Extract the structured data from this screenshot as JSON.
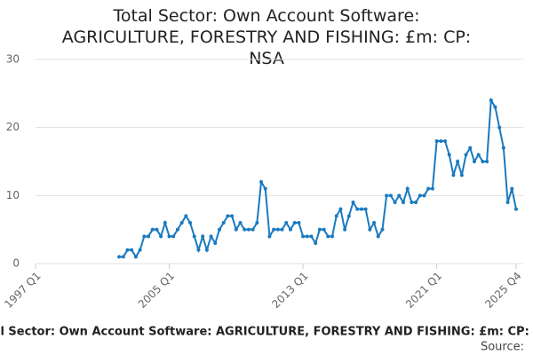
{
  "chart_data": {
    "type": "line",
    "title": "Total Sector: Own Account Software: AGRICULTURE, FORESTRY AND FISHING: £m: CP: NSA",
    "footer_title": "Total Sector: Own Account Software: AGRICULTURE, FORESTRY AND FISHING: £m: CP: NSA",
    "source_label": "Source:",
    "categories": [
      "1997 Q1",
      null,
      null,
      null,
      null,
      null,
      null,
      null,
      null,
      null,
      null,
      null,
      null,
      null,
      null,
      null,
      null,
      null,
      null,
      null,
      null,
      null,
      null,
      null,
      null,
      null,
      null,
      null,
      null,
      null,
      null,
      null,
      "2005 Q1",
      null,
      null,
      null,
      null,
      null,
      null,
      null,
      null,
      null,
      null,
      null,
      null,
      null,
      null,
      null,
      null,
      null,
      null,
      null,
      null,
      null,
      null,
      null,
      null,
      null,
      null,
      null,
      null,
      null,
      null,
      null,
      "2013 Q1",
      null,
      null,
      null,
      null,
      null,
      null,
      null,
      null,
      null,
      null,
      null,
      null,
      null,
      null,
      null,
      null,
      null,
      null,
      null,
      null,
      null,
      null,
      null,
      null,
      null,
      null,
      null,
      null,
      null,
      null,
      null,
      "2021 Q1",
      null,
      null,
      null,
      null,
      null,
      null,
      null,
      null,
      null,
      null,
      null,
      null,
      null,
      null,
      null,
      null,
      null,
      null,
      "2025 Q4"
    ],
    "series": [
      {
        "color": "#1a7abf",
        "values": [
          null,
          null,
          null,
          null,
          null,
          null,
          null,
          null,
          null,
          null,
          null,
          null,
          null,
          null,
          null,
          null,
          null,
          null,
          null,
          null,
          1,
          1,
          2,
          2,
          1,
          2,
          4,
          4,
          5,
          5,
          4,
          6,
          4,
          4,
          5,
          6,
          7,
          6,
          4,
          2,
          4,
          2,
          4,
          3,
          5,
          6,
          7,
          7,
          5,
          6,
          5,
          5,
          5,
          6,
          12,
          11,
          4,
          5,
          5,
          5,
          6,
          5,
          6,
          6,
          4,
          4,
          4,
          3,
          5,
          5,
          4,
          4,
          7,
          8,
          5,
          7,
          9,
          8,
          8,
          8,
          5,
          6,
          4,
          5,
          10,
          10,
          9,
          10,
          9,
          11,
          9,
          9,
          10,
          10,
          11,
          11,
          18,
          18,
          18,
          16,
          13,
          15,
          13,
          16,
          17,
          15,
          16,
          15,
          15,
          24,
          23,
          20,
          17,
          9,
          11,
          8
        ]
      }
    ],
    "ylim": [
      0,
      30
    ],
    "yticks": [
      0,
      10,
      20,
      30
    ],
    "grid": true
  }
}
